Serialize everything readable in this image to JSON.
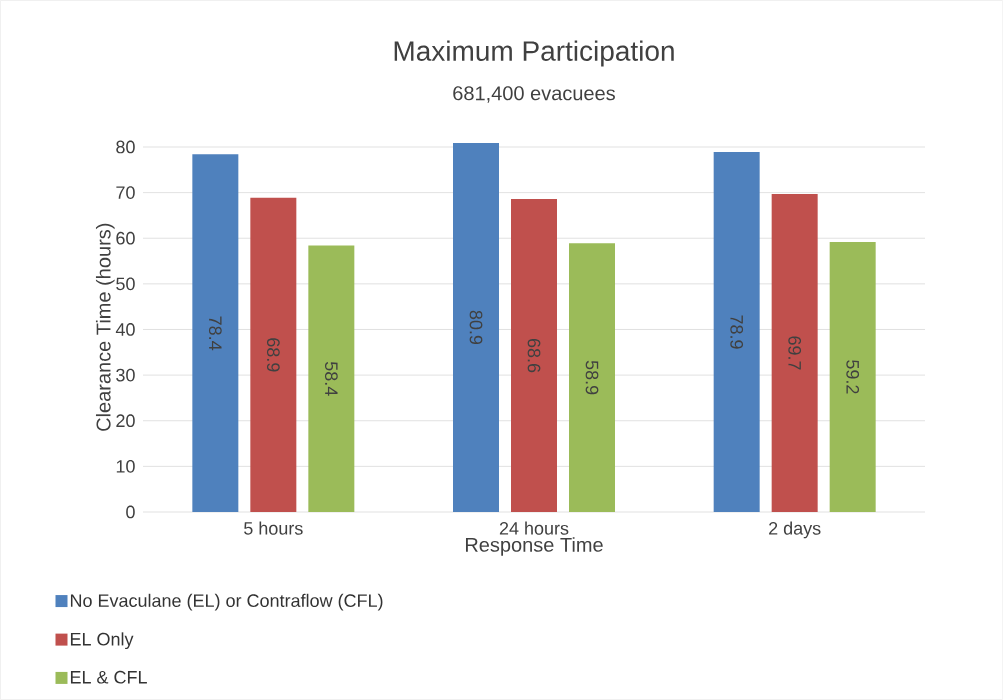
{
  "chart_data": {
    "type": "bar",
    "title": "Maximum Participation",
    "subtitle": "681,400 evacuees",
    "xlabel": "Response Time",
    "ylabel": "Clearance Time (hours)",
    "categories": [
      "5 hours",
      "24 hours",
      "2 days"
    ],
    "series": [
      {
        "name": "No Evaculane (EL) or Contraflow (CFL)",
        "color": "#4f81bd",
        "values": [
          78.4,
          80.9,
          78.9
        ]
      },
      {
        "name": "EL Only",
        "color": "#c0504d",
        "values": [
          68.9,
          68.6,
          69.7
        ]
      },
      {
        "name": "EL & CFL",
        "color": "#9bbb59",
        "values": [
          58.4,
          58.9,
          59.2
        ]
      }
    ],
    "ylim": [
      0,
      81
    ],
    "yticks": [
      0,
      10,
      20,
      30,
      40,
      50,
      60,
      70,
      80
    ],
    "grid": "y",
    "legend": "bottom left",
    "data_labels": true
  }
}
